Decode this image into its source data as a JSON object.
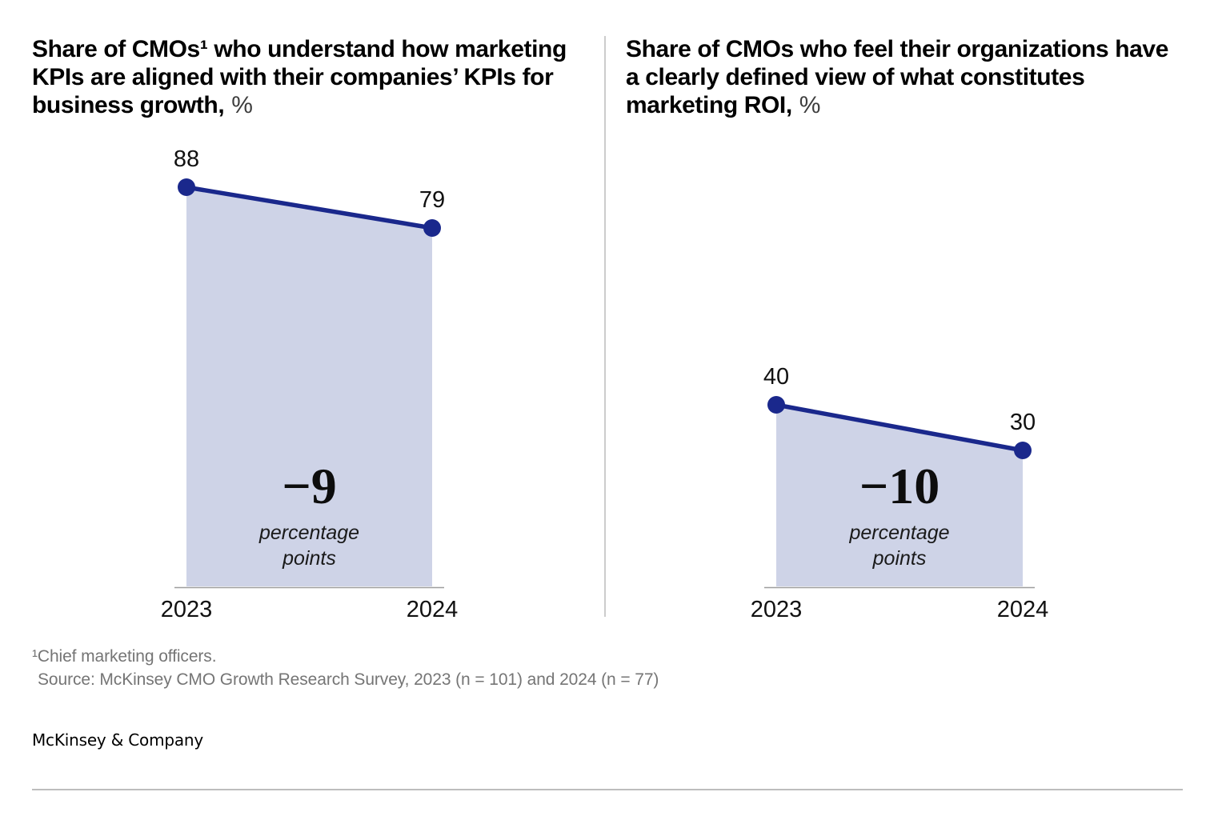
{
  "titles": {
    "left": {
      "lines": [
        "Share of CMOs¹ who understand how marketing",
        "KPIs are aligned with their companies’ KPIs for",
        "business growth,"
      ],
      "unit": "%"
    },
    "right": {
      "lines": [
        "Share of CMOs who feel their organizations have",
        "a clearly defined view of what constitutes",
        "marketing ROI,"
      ],
      "unit": "%"
    }
  },
  "chart_data": [
    {
      "type": "area",
      "title": "Share of CMOs¹ who understand how marketing KPIs are aligned with their companies’ KPIs for business growth, %",
      "categories": [
        "2023",
        "2024"
      ],
      "values": [
        88,
        79
      ],
      "delta_value": "−9",
      "delta_caption": [
        "percentage",
        "points"
      ],
      "ylim": [
        0,
        100
      ],
      "grid": false,
      "legend": "none",
      "colors": {
        "line": "#1A288C",
        "fill": "#CED3E7",
        "axis": "#9E9E9E"
      }
    },
    {
      "type": "area",
      "title": "Share of CMOs who feel their organizations have a clearly defined view of what constitutes marketing ROI, %",
      "categories": [
        "2023",
        "2024"
      ],
      "values": [
        40,
        30
      ],
      "delta_value": "−10",
      "delta_caption": [
        "percentage",
        "points"
      ],
      "ylim": [
        0,
        100
      ],
      "grid": false,
      "legend": "none",
      "colors": {
        "line": "#1A288C",
        "fill": "#CED3E7",
        "axis": "#9E9E9E"
      }
    }
  ],
  "footer": {
    "footnote": "¹Chief marketing officers.",
    "source": "Source: McKinsey CMO Growth Research Survey, 2023 (n = 101) and 2024 (n = 77)",
    "logo": "McKinsey & Company"
  }
}
